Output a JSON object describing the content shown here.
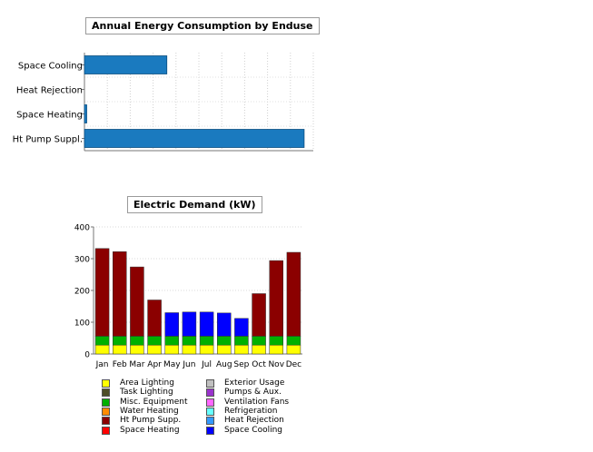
{
  "chart_data": [
    {
      "type": "bar",
      "orientation": "horizontal",
      "title": "Annual Energy Consumption by Enduse",
      "categories": [
        "Space Cooling",
        "Heat Rejection",
        "Space Heating",
        "Ht Pump Suppl."
      ],
      "values": [
        36,
        0,
        1,
        96
      ],
      "xlim": [
        0,
        100
      ],
      "grid": true,
      "color": "#1a7abf"
    },
    {
      "type": "bar",
      "stacked": true,
      "title": "Electric Demand (kW)",
      "categories": [
        "Jan",
        "Feb",
        "Mar",
        "Apr",
        "May",
        "Jun",
        "Jul",
        "Aug",
        "Sep",
        "Oct",
        "Nov",
        "Dec"
      ],
      "yticks": [
        0,
        100,
        200,
        300,
        400
      ],
      "ylim": [
        0,
        400
      ],
      "grid": true,
      "legend_position": "bottom",
      "series": [
        {
          "name": "Area Lighting",
          "color": "#ffff00",
          "values": [
            28,
            28,
            28,
            28,
            28,
            28,
            28,
            28,
            28,
            28,
            28,
            28
          ]
        },
        {
          "name": "Task Lighting",
          "color": "#4d4d26",
          "values": [
            0,
            0,
            0,
            0,
            0,
            0,
            0,
            0,
            0,
            0,
            0,
            0
          ]
        },
        {
          "name": "Misc. Equipment",
          "color": "#00b000",
          "values": [
            28,
            28,
            28,
            28,
            28,
            28,
            28,
            28,
            28,
            28,
            28,
            28
          ]
        },
        {
          "name": "Water Heating",
          "color": "#ff8c00",
          "values": [
            0,
            0,
            0,
            0,
            0,
            0,
            0,
            0,
            0,
            0,
            0,
            0
          ]
        },
        {
          "name": "Ht Pump Supp.",
          "color": "#8b0000",
          "values": [
            276,
            266,
            218,
            114,
            0,
            0,
            0,
            0,
            0,
            134,
            238,
            264
          ]
        },
        {
          "name": "Space Heating",
          "color": "#ff0000",
          "values": [
            0,
            0,
            0,
            0,
            0,
            0,
            0,
            0,
            0,
            0,
            0,
            0
          ]
        },
        {
          "name": "Exterior Usage",
          "color": "#c0c0c0",
          "values": [
            0,
            0,
            0,
            0,
            0,
            0,
            0,
            0,
            0,
            0,
            0,
            0
          ]
        },
        {
          "name": "Pumps & Aux.",
          "color": "#9933cc",
          "values": [
            0,
            0,
            0,
            0,
            0,
            0,
            0,
            0,
            0,
            0,
            0,
            0
          ]
        },
        {
          "name": "Ventilation Fans",
          "color": "#ff66ff",
          "values": [
            0,
            0,
            0,
            0,
            0,
            0,
            0,
            0,
            0,
            0,
            0,
            0
          ]
        },
        {
          "name": "Refrigeration",
          "color": "#66ffff",
          "values": [
            0,
            0,
            0,
            0,
            0,
            0,
            0,
            0,
            0,
            0,
            0,
            0
          ]
        },
        {
          "name": "Heat Rejection",
          "color": "#3399ff",
          "values": [
            0,
            0,
            0,
            0,
            0,
            0,
            0,
            0,
            0,
            0,
            0,
            0
          ]
        },
        {
          "name": "Space Cooling",
          "color": "#0000ff",
          "values": [
            0,
            0,
            0,
            0,
            74,
            76,
            76,
            73,
            56,
            0,
            0,
            0
          ]
        }
      ]
    }
  ]
}
